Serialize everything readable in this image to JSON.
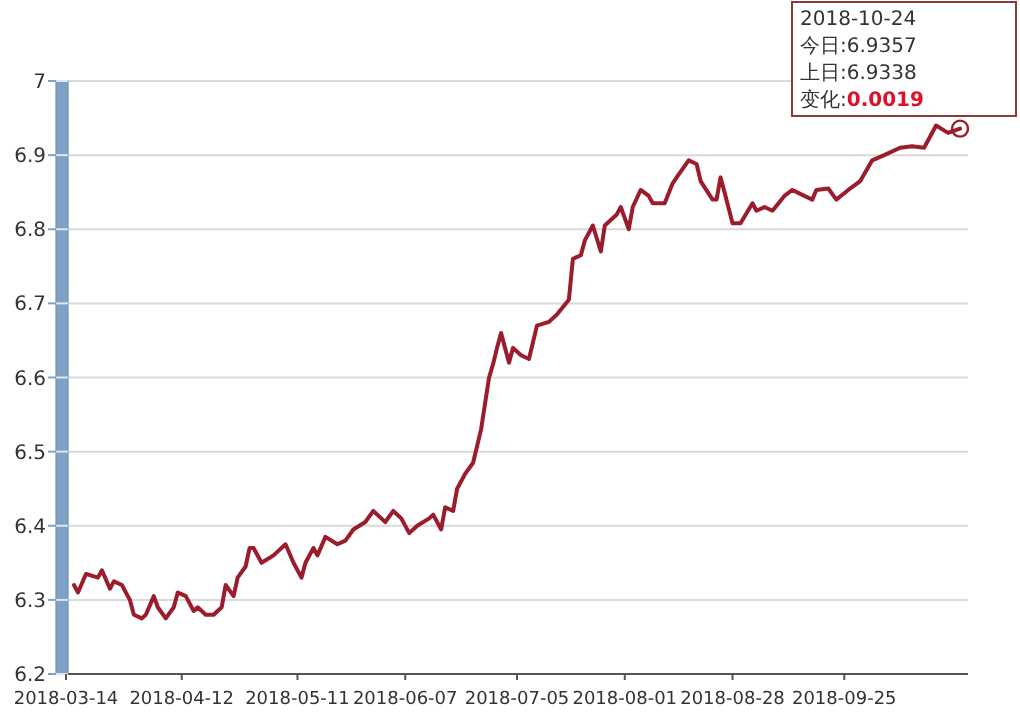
{
  "chart_data": {
    "type": "line",
    "x": [
      "2018-03-16",
      "2018-03-17",
      "2018-03-19",
      "2018-03-22",
      "2018-03-23",
      "2018-03-25",
      "2018-03-26",
      "2018-03-28",
      "2018-03-30",
      "2018-03-31",
      "2018-04-02",
      "2018-04-03",
      "2018-04-05",
      "2018-04-06",
      "2018-04-08",
      "2018-04-10",
      "2018-04-11",
      "2018-04-13",
      "2018-04-15",
      "2018-04-16",
      "2018-04-18",
      "2018-04-20",
      "2018-04-22",
      "2018-04-23",
      "2018-04-25",
      "2018-04-26",
      "2018-04-28",
      "2018-04-29",
      "2018-04-30",
      "2018-05-02",
      "2018-05-05",
      "2018-05-08",
      "2018-05-10",
      "2018-05-12",
      "2018-05-13",
      "2018-05-15",
      "2018-05-16",
      "2018-05-18",
      "2018-05-21",
      "2018-05-23",
      "2018-05-25",
      "2018-05-28",
      "2018-05-30",
      "2018-06-01",
      "2018-06-02",
      "2018-06-04",
      "2018-06-06",
      "2018-06-08",
      "2018-06-10",
      "2018-06-13",
      "2018-06-14",
      "2018-06-16",
      "2018-06-17",
      "2018-06-19",
      "2018-06-20",
      "2018-06-22",
      "2018-06-24",
      "2018-06-26",
      "2018-06-28",
      "2018-06-29",
      "2018-06-30",
      "2018-07-01",
      "2018-07-03",
      "2018-07-04",
      "2018-07-06",
      "2018-07-08",
      "2018-07-10",
      "2018-07-13",
      "2018-07-15",
      "2018-07-18",
      "2018-07-19",
      "2018-07-21",
      "2018-07-22",
      "2018-07-24",
      "2018-07-26",
      "2018-07-27",
      "2018-07-30",
      "2018-07-31",
      "2018-08-02",
      "2018-08-03",
      "2018-08-05",
      "2018-08-07",
      "2018-08-08",
      "2018-08-11",
      "2018-08-13",
      "2018-08-14",
      "2018-08-17",
      "2018-08-19",
      "2018-08-20",
      "2018-08-23",
      "2018-08-24",
      "2018-08-25",
      "2018-08-26",
      "2018-08-28",
      "2018-08-30",
      "2018-09-02",
      "2018-09-03",
      "2018-09-05",
      "2018-09-07",
      "2018-09-10",
      "2018-09-12",
      "2018-09-15",
      "2018-09-17",
      "2018-09-18",
      "2018-09-21",
      "2018-09-23",
      "2018-09-26",
      "2018-09-29",
      "2018-10-02",
      "2018-10-05",
      "2018-10-09",
      "2018-10-12",
      "2018-10-15",
      "2018-10-18",
      "2018-10-21",
      "2018-10-24"
    ],
    "values": [
      6.32,
      6.31,
      6.335,
      6.33,
      6.34,
      6.315,
      6.325,
      6.32,
      6.3,
      6.28,
      6.275,
      6.28,
      6.305,
      6.29,
      6.275,
      6.29,
      6.31,
      6.305,
      6.285,
      6.29,
      6.28,
      6.28,
      6.29,
      6.32,
      6.305,
      6.33,
      6.345,
      6.37,
      6.37,
      6.35,
      6.36,
      6.375,
      6.35,
      6.33,
      6.35,
      6.37,
      6.36,
      6.385,
      6.375,
      6.38,
      6.395,
      6.405,
      6.42,
      6.41,
      6.405,
      6.42,
      6.41,
      6.39,
      6.4,
      6.41,
      6.415,
      6.395,
      6.425,
      6.42,
      6.45,
      6.47,
      6.485,
      6.53,
      6.6,
      6.618,
      6.64,
      6.66,
      6.62,
      6.64,
      6.63,
      6.625,
      6.67,
      6.675,
      6.685,
      6.705,
      6.76,
      6.765,
      6.785,
      6.805,
      6.77,
      6.805,
      6.82,
      6.83,
      6.8,
      6.83,
      6.853,
      6.845,
      6.835,
      6.835,
      6.862,
      6.87,
      6.893,
      6.888,
      6.865,
      6.84,
      6.84,
      6.87,
      6.85,
      6.808,
      6.808,
      6.835,
      6.825,
      6.83,
      6.825,
      6.845,
      6.853,
      6.845,
      6.84,
      6.853,
      6.855,
      6.84,
      6.853,
      6.865,
      6.893,
      6.9,
      6.91,
      6.912,
      6.91,
      6.94,
      6.93,
      6.9357
    ],
    "color": "#9b1c2c",
    "xlim": [
      "2018-03-14",
      "2018-10-26"
    ],
    "xticks": [
      "2018-03-14",
      "2018-04-12",
      "2018-05-11",
      "2018-06-07",
      "2018-07-05",
      "2018-08-01",
      "2018-08-28",
      "2018-09-25"
    ],
    "ylim": [
      6.2,
      7
    ],
    "yticks": [
      6.2,
      6.3,
      6.4,
      6.5,
      6.6,
      6.7,
      6.8,
      6.9,
      7
    ],
    "grid": "y",
    "annotations": [
      "2018-10-24",
      "今日:6.9357",
      "上日:6.9338",
      "变化:**0.0019**"
    ]
  }
}
